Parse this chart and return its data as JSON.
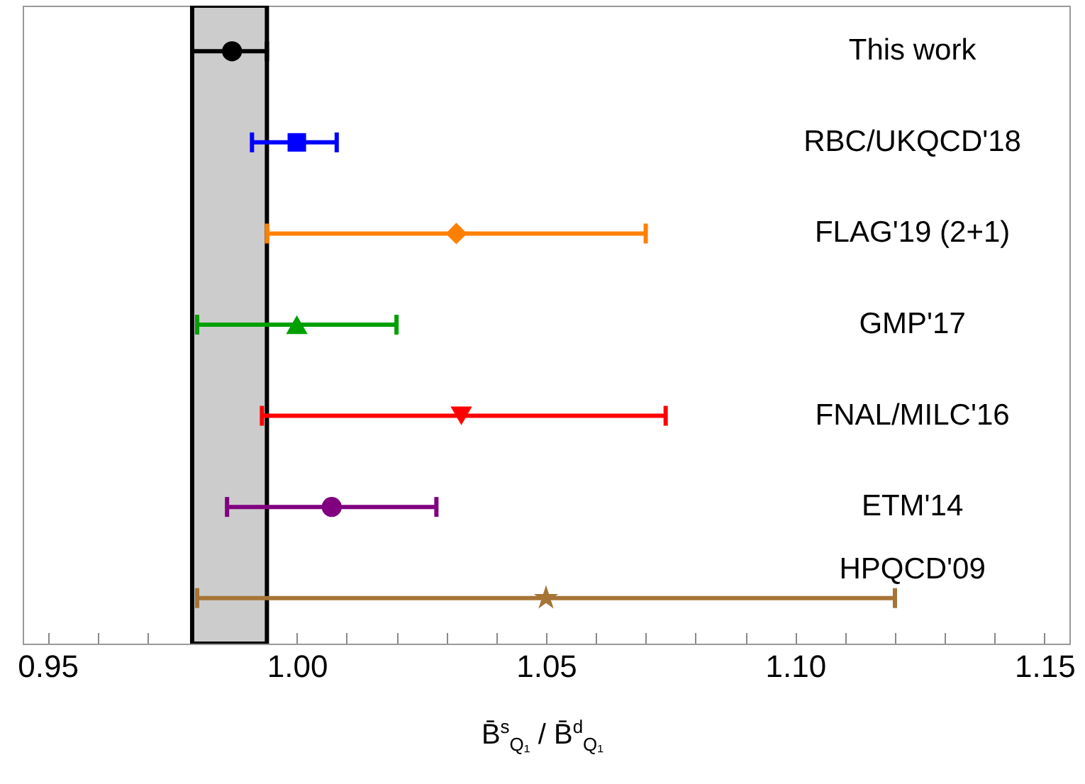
{
  "chart_data": {
    "type": "scatter",
    "orientation": "horizontal",
    "xlabel": "B̄$^{s}$$_{Q₁}$ / B̄$^{d}$$_{Q₁}$",
    "categories": [
      "This work",
      "RBC/UKQCD'18",
      "FLAG'19 (2+1)",
      "GMP'17",
      "FNAL/MILC'16",
      "ETM'14",
      "HPQCD'09"
    ],
    "series": [
      {
        "color": "#000000",
        "marker": "circle",
        "values": [
          0.987,
          null,
          null,
          null,
          null,
          null,
          null
        ],
        "errors": [
          [
            0.979,
            0.994
          ],
          null,
          null,
          null,
          null,
          null,
          null
        ]
      },
      {
        "color": "#0000ff",
        "marker": "square",
        "values": [
          null,
          1.0,
          null,
          null,
          null,
          null,
          null
        ],
        "errors": [
          null,
          [
            0.991,
            1.008
          ],
          null,
          null,
          null,
          null,
          null
        ]
      },
      {
        "color": "#ff8000",
        "marker": "diamond",
        "values": [
          null,
          null,
          1.032,
          null,
          null,
          null,
          null
        ],
        "errors": [
          null,
          null,
          [
            0.994,
            1.07
          ],
          null,
          null,
          null,
          null
        ]
      },
      {
        "color": "#00a000",
        "marker": "triangle",
        "values": [
          null,
          null,
          null,
          1.0,
          null,
          null,
          null
        ],
        "errors": [
          null,
          null,
          null,
          [
            0.98,
            1.02
          ],
          null,
          null,
          null
        ]
      },
      {
        "color": "#ff0000",
        "marker": "triangle-down",
        "values": [
          null,
          null,
          null,
          null,
          1.033,
          null,
          null
        ],
        "errors": [
          null,
          null,
          null,
          null,
          [
            0.993,
            1.074
          ],
          null,
          null
        ]
      },
      {
        "color": "#800080",
        "marker": "circle",
        "values": [
          null,
          null,
          null,
          null,
          null,
          1.007,
          null
        ],
        "errors": [
          null,
          null,
          null,
          null,
          null,
          [
            0.986,
            1.028
          ],
          null
        ]
      },
      {
        "color": "#a67436",
        "marker": "star",
        "values": [
          null,
          null,
          null,
          null,
          null,
          null,
          1.05
        ],
        "errors": [
          null,
          null,
          null,
          null,
          null,
          null,
          [
            0.98,
            1.12
          ]
        ]
      }
    ],
    "bands": [
      {
        "axis": "x",
        "from": 0.979,
        "to": 0.994,
        "color": "#cccccc"
      }
    ],
    "xlim": [
      0.945,
      1.155
    ],
    "xticks": [
      {
        "value": 0.95,
        "label": "0.95"
      },
      {
        "value": 0.96,
        "label": null
      },
      {
        "value": 0.97,
        "label": null
      },
      {
        "value": 0.98,
        "label": null
      },
      {
        "value": 0.99,
        "label": null
      },
      {
        "value": 1.0,
        "label": "1.00"
      },
      {
        "value": 1.01,
        "label": null
      },
      {
        "value": 1.02,
        "label": null
      },
      {
        "value": 1.03,
        "label": null
      },
      {
        "value": 1.04,
        "label": null
      },
      {
        "value": 1.05,
        "label": "1.05"
      },
      {
        "value": 1.06,
        "label": null
      },
      {
        "value": 1.07,
        "label": null
      },
      {
        "value": 1.08,
        "label": null
      },
      {
        "value": 1.09,
        "label": null
      },
      {
        "value": 1.1,
        "label": "1.10"
      },
      {
        "value": 1.11,
        "label": null
      },
      {
        "value": 1.12,
        "label": null
      },
      {
        "value": 1.13,
        "label": null
      },
      {
        "value": 1.14,
        "label": null
      },
      {
        "value": 1.15,
        "label": "1.15"
      }
    ],
    "grid": false
  }
}
